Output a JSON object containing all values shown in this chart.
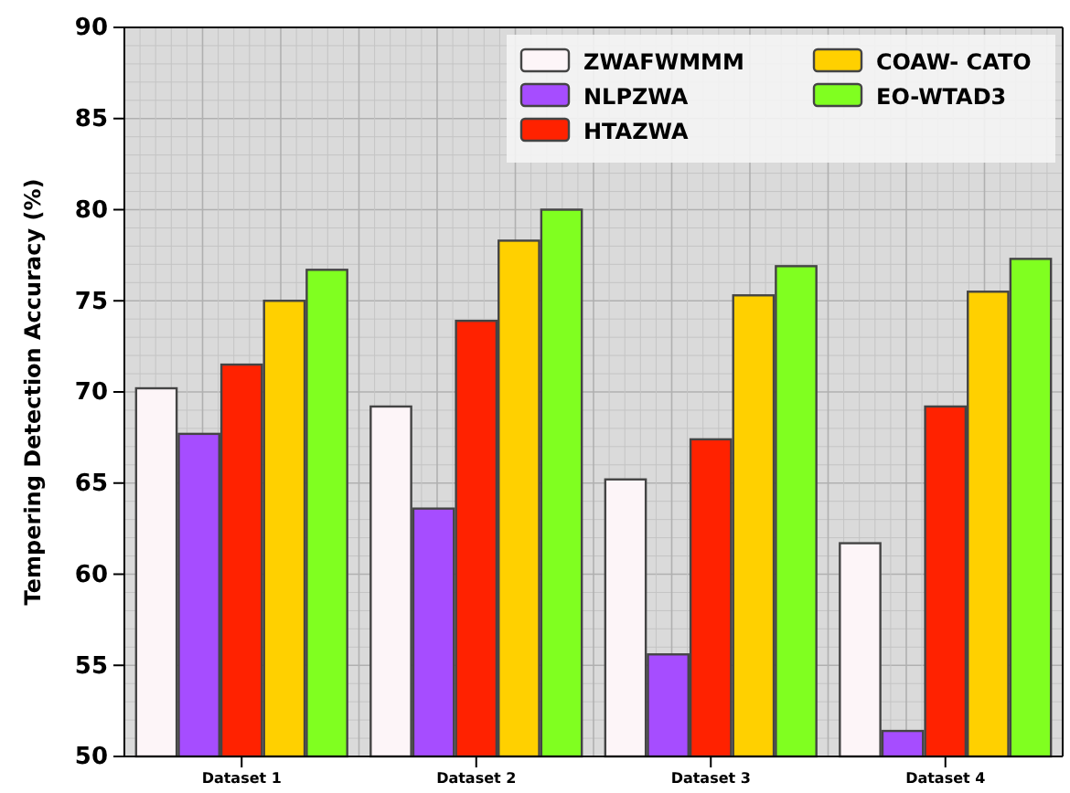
{
  "chart_data": {
    "type": "bar",
    "ylabel": "Tempering Detection Accuracy (%)",
    "categories": [
      "Dataset 1",
      "Dataset 2",
      "Dataset 3",
      "Dataset 4"
    ],
    "series": [
      {
        "name": "ZWAFWMMM",
        "color": "#fdf5f8",
        "values": [
          70.2,
          69.2,
          65.2,
          61.7
        ]
      },
      {
        "name": "NLPZWA",
        "color": "#a64dff",
        "values": [
          67.7,
          63.6,
          55.6,
          51.4
        ]
      },
      {
        "name": "HTAZWA",
        "color": "#ff2200",
        "values": [
          71.5,
          73.9,
          67.4,
          69.2
        ]
      },
      {
        "name": "COAW- CATO",
        "color": "#ffd000",
        "values": [
          75,
          78.3,
          75.3,
          75.5
        ]
      },
      {
        "name": "EO-WTAD3",
        "color": "#80ff20",
        "values": [
          76.7,
          80,
          76.9,
          77.3
        ]
      }
    ],
    "ylim": [
      50,
      90
    ],
    "yticks": [
      50,
      55,
      60,
      65,
      70,
      75,
      80,
      85,
      90
    ],
    "grid": true,
    "legend": "top right"
  }
}
